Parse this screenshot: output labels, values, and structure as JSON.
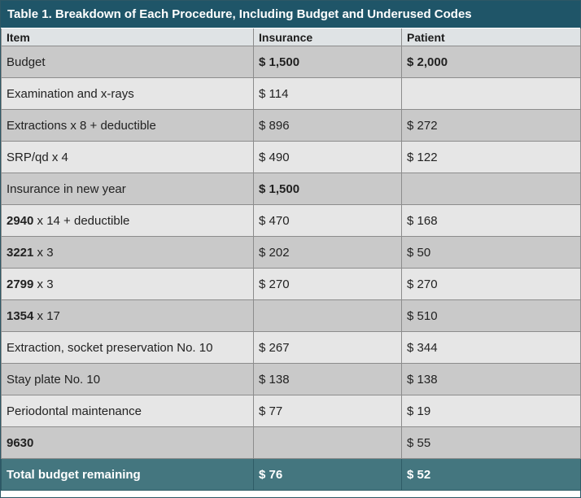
{
  "table": {
    "title": "Table 1. Breakdown of Each Procedure, Including Budget and Underused Codes",
    "headers": [
      "Item",
      "Insurance",
      "Patient"
    ],
    "rows": [
      {
        "item_bold": "",
        "item": "Budget",
        "insurance": "$ 1,500",
        "patient": "$ 2,000",
        "values_bold": true
      },
      {
        "item_bold": "",
        "item": "Examination and x-rays",
        "insurance": "$ 114",
        "patient": "",
        "values_bold": false
      },
      {
        "item_bold": "",
        "item": "Extractions x 8 + deductible",
        "insurance": "$ 896",
        "patient": "$ 272",
        "values_bold": false
      },
      {
        "item_bold": "",
        "item": "SRP/qd x 4",
        "insurance": "$ 490",
        "patient": "$ 122",
        "values_bold": false
      },
      {
        "item_bold": "",
        "item": "Insurance in new year",
        "insurance": "$ 1,500",
        "patient": "",
        "values_bold": true
      },
      {
        "item_bold": "2940",
        "item": " x 14 + deductible",
        "insurance": "$ 470",
        "patient": "$ 168",
        "values_bold": false
      },
      {
        "item_bold": "3221",
        "item": " x 3",
        "insurance": "$ 202",
        "patient": "$ 50",
        "values_bold": false
      },
      {
        "item_bold": "2799",
        "item": " x 3",
        "insurance": "$ 270",
        "patient": "$ 270",
        "values_bold": false
      },
      {
        "item_bold": "1354",
        "item": " x 17",
        "insurance": "",
        "patient": "$ 510",
        "values_bold": false
      },
      {
        "item_bold": "",
        "item": "Extraction, socket preservation No. 10",
        "insurance": "$ 267",
        "patient": "$ 344",
        "values_bold": false
      },
      {
        "item_bold": "",
        "item": "Stay plate No. 10",
        "insurance": "$ 138",
        "patient": "$ 138",
        "values_bold": false
      },
      {
        "item_bold": "",
        "item": "Periodontal maintenance",
        "insurance": "$ 77",
        "patient": "$ 19",
        "values_bold": false
      },
      {
        "item_bold": "9630",
        "item": "",
        "insurance": "",
        "patient": "$ 55",
        "values_bold": false
      }
    ],
    "total": {
      "item": "Total budget remaining",
      "insurance": "$ 76",
      "patient": "$ 52"
    }
  }
}
